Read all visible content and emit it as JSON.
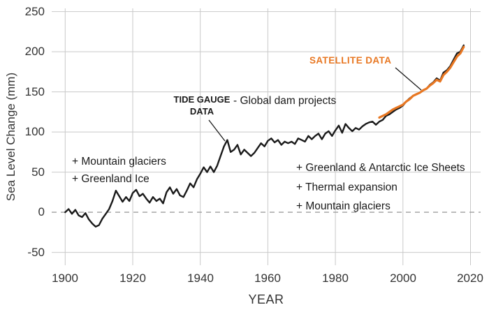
{
  "chart_data": {
    "type": "line",
    "title": "",
    "xlabel": "YEAR",
    "ylabel": "Sea Level Change (mm)",
    "xlim": [
      1896,
      2023
    ],
    "ylim": [
      -66,
      254
    ],
    "x_ticks": [
      1900,
      1920,
      1940,
      1960,
      1980,
      2000,
      2020
    ],
    "y_ticks": [
      -50,
      0,
      50,
      100,
      150,
      200,
      250
    ],
    "grid": true,
    "legend_position": "none",
    "colors": {
      "tide": "#1a1a1a",
      "satellite": "#e87722",
      "grid": "#c9c9c9",
      "zero_line": "#9e9e9e",
      "text": "#333333"
    },
    "series": [
      {
        "name": "Tide gauge data",
        "data_name": "tide-gauge-line",
        "color": "#1a1a1a",
        "width": 2.4,
        "x_start": 1900,
        "x_step": 1,
        "values": [
          0,
          4,
          -2,
          3,
          -4,
          -6,
          -1,
          -9,
          -14,
          -18,
          -16,
          -8,
          -2,
          4,
          14,
          27,
          20,
          13,
          19,
          14,
          24,
          28,
          20,
          23,
          17,
          12,
          19,
          14,
          17,
          11,
          25,
          31,
          23,
          29,
          21,
          19,
          27,
          36,
          31,
          41,
          48,
          56,
          50,
          57,
          50,
          58,
          70,
          82,
          90,
          75,
          78,
          84,
          72,
          78,
          74,
          70,
          74,
          80,
          86,
          82,
          89,
          92,
          87,
          90,
          84,
          88,
          86,
          88,
          85,
          92,
          90,
          88,
          95,
          91,
          95,
          98,
          91,
          98,
          101,
          95,
          102,
          108,
          99,
          110,
          105,
          101,
          105,
          103,
          107,
          110,
          112,
          113,
          109,
          113,
          115,
          120,
          122,
          125,
          128,
          130,
          133,
          138,
          142,
          145,
          147,
          149,
          152,
          154,
          159,
          162,
          167,
          164,
          174,
          177,
          182,
          190,
          198,
          200,
          208
        ]
      },
      {
        "name": "Satellite data",
        "data_name": "satellite-line",
        "color": "#e87722",
        "width": 3.2,
        "x_start": 1993,
        "x_step": 1,
        "values": [
          118,
          120,
          122,
          125,
          128,
          130,
          132,
          134,
          138,
          141,
          145,
          147,
          149,
          152,
          154,
          158,
          161,
          165,
          163,
          171,
          175,
          180,
          187,
          194,
          198,
          206
        ]
      }
    ],
    "annotations": {
      "tide_gauge": "TIDE GAUGE\nDATA",
      "satellite": "SATELLITE DATA",
      "dam_projects": "- Global dam projects",
      "early_causes": "+ Mountain glaciers\n+ Greenland Ice",
      "late_causes": "+ Greenland & Antarctic Ice Sheets\n+ Thermal expansion\n+ Mountain glaciers"
    }
  }
}
